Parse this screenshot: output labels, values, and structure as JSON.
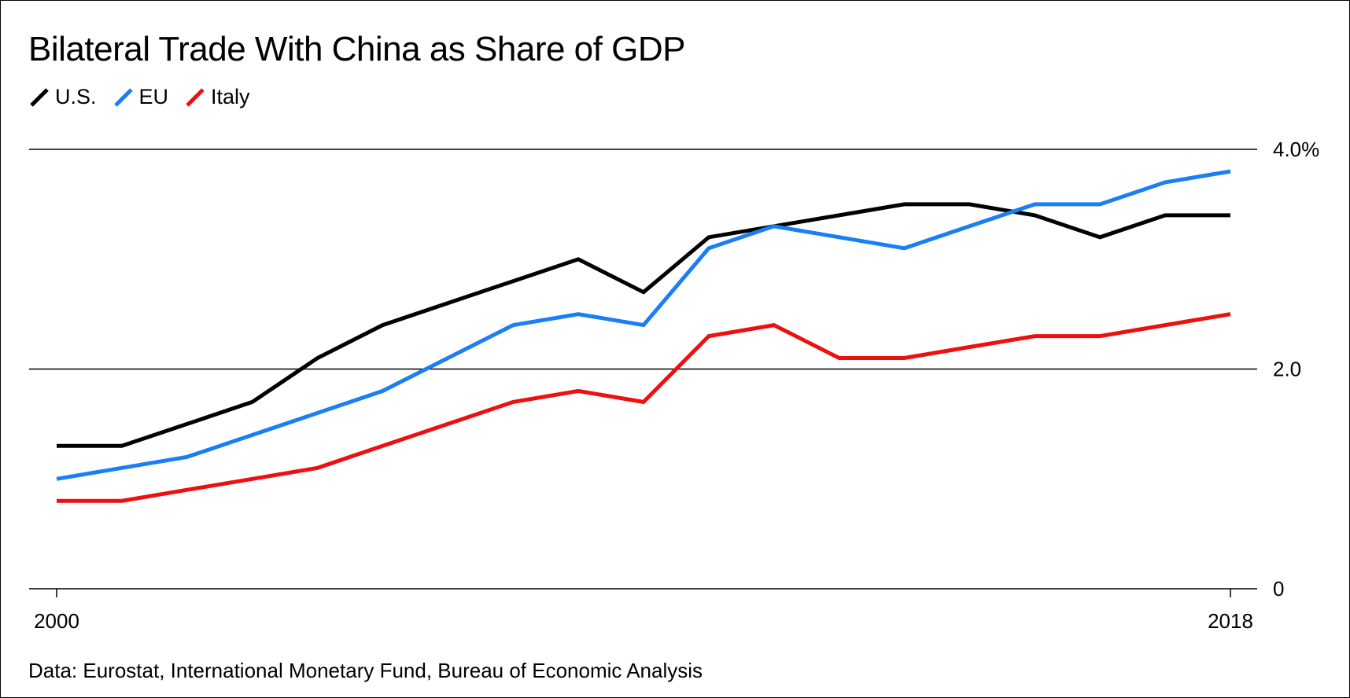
{
  "chart_data": {
    "type": "line",
    "title": "Bilateral Trade With China as Share of GDP",
    "source": "Data: Eurostat, International Monetary Fund, Bureau of Economic Analysis",
    "x": [
      2000,
      2001,
      2002,
      2003,
      2004,
      2005,
      2006,
      2007,
      2008,
      2009,
      2010,
      2011,
      2012,
      2013,
      2014,
      2015,
      2016,
      2017,
      2018
    ],
    "x_tick_labels": [
      "2000",
      "2018"
    ],
    "y_ticks": [
      0,
      2.0,
      4.0
    ],
    "y_tick_labels": [
      "0",
      "2.0",
      "4.0%"
    ],
    "ylim": [
      0,
      4.0
    ],
    "grid": true,
    "legend_position": "top-left",
    "series": [
      {
        "name": "U.S.",
        "color": "#000000",
        "values": [
          1.3,
          1.3,
          1.5,
          1.7,
          2.1,
          2.4,
          2.6,
          2.8,
          3.0,
          2.7,
          3.2,
          3.3,
          3.4,
          3.5,
          3.5,
          3.4,
          3.2,
          3.4,
          3.4
        ]
      },
      {
        "name": "EU",
        "color": "#1a7ef5",
        "values": [
          1.0,
          1.1,
          1.2,
          1.4,
          1.6,
          1.8,
          2.1,
          2.4,
          2.5,
          2.4,
          3.1,
          3.3,
          3.2,
          3.1,
          3.3,
          3.5,
          3.5,
          3.7,
          3.8
        ]
      },
      {
        "name": "Italy",
        "color": "#ee0f0f",
        "values": [
          0.8,
          0.8,
          0.9,
          1.0,
          1.1,
          1.3,
          1.5,
          1.7,
          1.8,
          1.7,
          2.3,
          2.4,
          2.1,
          2.1,
          2.2,
          2.3,
          2.3,
          2.4,
          2.5
        ]
      }
    ]
  }
}
